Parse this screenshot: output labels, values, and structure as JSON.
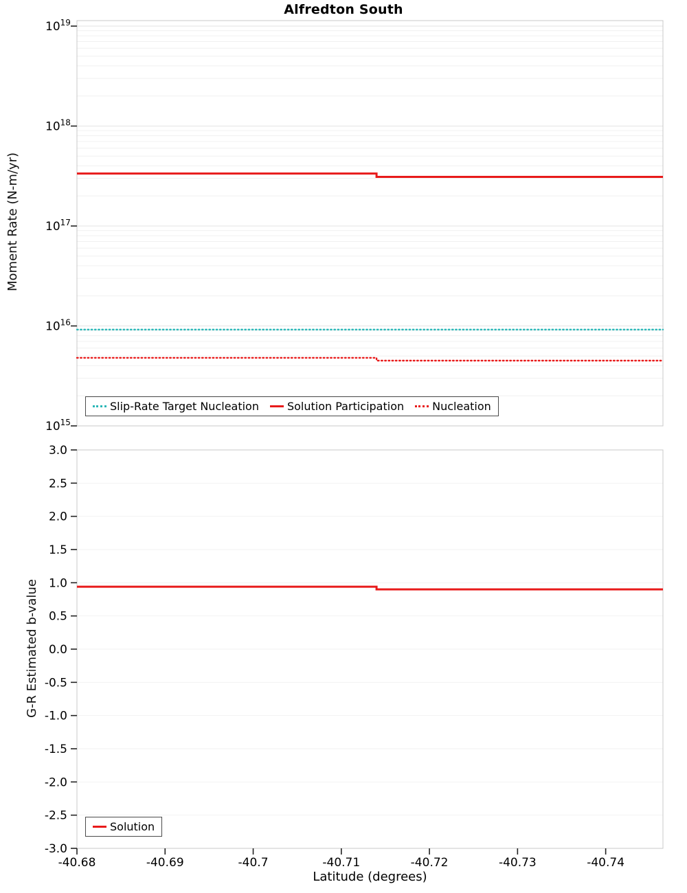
{
  "chart_data": [
    {
      "type": "line",
      "title": "Alfredton South",
      "ylabel": "Moment Rate (N-m/yr)",
      "yscale": "log",
      "ylim": [
        1000000000000000.0,
        1e+19
      ],
      "xlim": [
        -40.68,
        -40.7465
      ],
      "x_reversed": true,
      "grid": "horizontal-log-minor",
      "legend_position": "bottom-left-inside",
      "y_ticks": {
        "exponents": [
          19,
          18,
          17,
          16,
          15
        ]
      },
      "series": [
        {
          "name": "Slip-Rate Target Nucleation",
          "color": "#2ab7b7",
          "style": "dotted",
          "x": [
            -40.68,
            -40.7465
          ],
          "y": [
            9200000000000000.0,
            9200000000000000.0
          ]
        },
        {
          "name": "Solution Participation",
          "color": "#e81a1a",
          "style": "solid",
          "x": [
            -40.68,
            -40.714,
            -40.714,
            -40.7465
          ],
          "y": [
            3.35e+17,
            3.35e+17,
            3.1e+17,
            3.1e+17
          ]
        },
        {
          "name": "Nucleation",
          "color": "#e81a1a",
          "style": "dotted",
          "x": [
            -40.68,
            -40.714,
            -40.714,
            -40.7465
          ],
          "y": [
            4800000000000000.0,
            4800000000000000.0,
            4500000000000000.0,
            4500000000000000.0
          ]
        }
      ]
    },
    {
      "type": "line",
      "xlabel": "Latitude (degrees)",
      "ylabel": "G-R Estimated b-value",
      "ylim": [
        -3,
        3
      ],
      "xlim": [
        -40.68,
        -40.7465
      ],
      "x_reversed": true,
      "grid": "horizontal",
      "legend_position": "bottom-left-inside",
      "y_ticks": {
        "values": [
          3.0,
          2.5,
          2.0,
          1.5,
          1.0,
          0.5,
          0.0,
          -0.5,
          -1.0,
          -1.5,
          -2.0,
          -2.5,
          -3.0
        ],
        "labels": [
          "3.0",
          "2.5",
          "2.0",
          "1.5",
          "1.0",
          "0.5",
          "0.0",
          "-0.5",
          "-1.0",
          "-1.5",
          "-2.0",
          "-2.5",
          "-3.0"
        ]
      },
      "x_ticks": {
        "values": [
          -40.68,
          -40.69,
          -40.7,
          -40.71,
          -40.72,
          -40.73,
          -40.74
        ],
        "labels": [
          "-40.68",
          "-40.69",
          "-40.7",
          "-40.71",
          "-40.72",
          "-40.73",
          "-40.74"
        ]
      },
      "series": [
        {
          "name": "Solution",
          "color": "#e81a1a",
          "style": "solid",
          "x": [
            -40.68,
            -40.714,
            -40.714,
            -40.7465
          ],
          "y": [
            0.94,
            0.94,
            0.9,
            0.9
          ]
        }
      ]
    }
  ]
}
